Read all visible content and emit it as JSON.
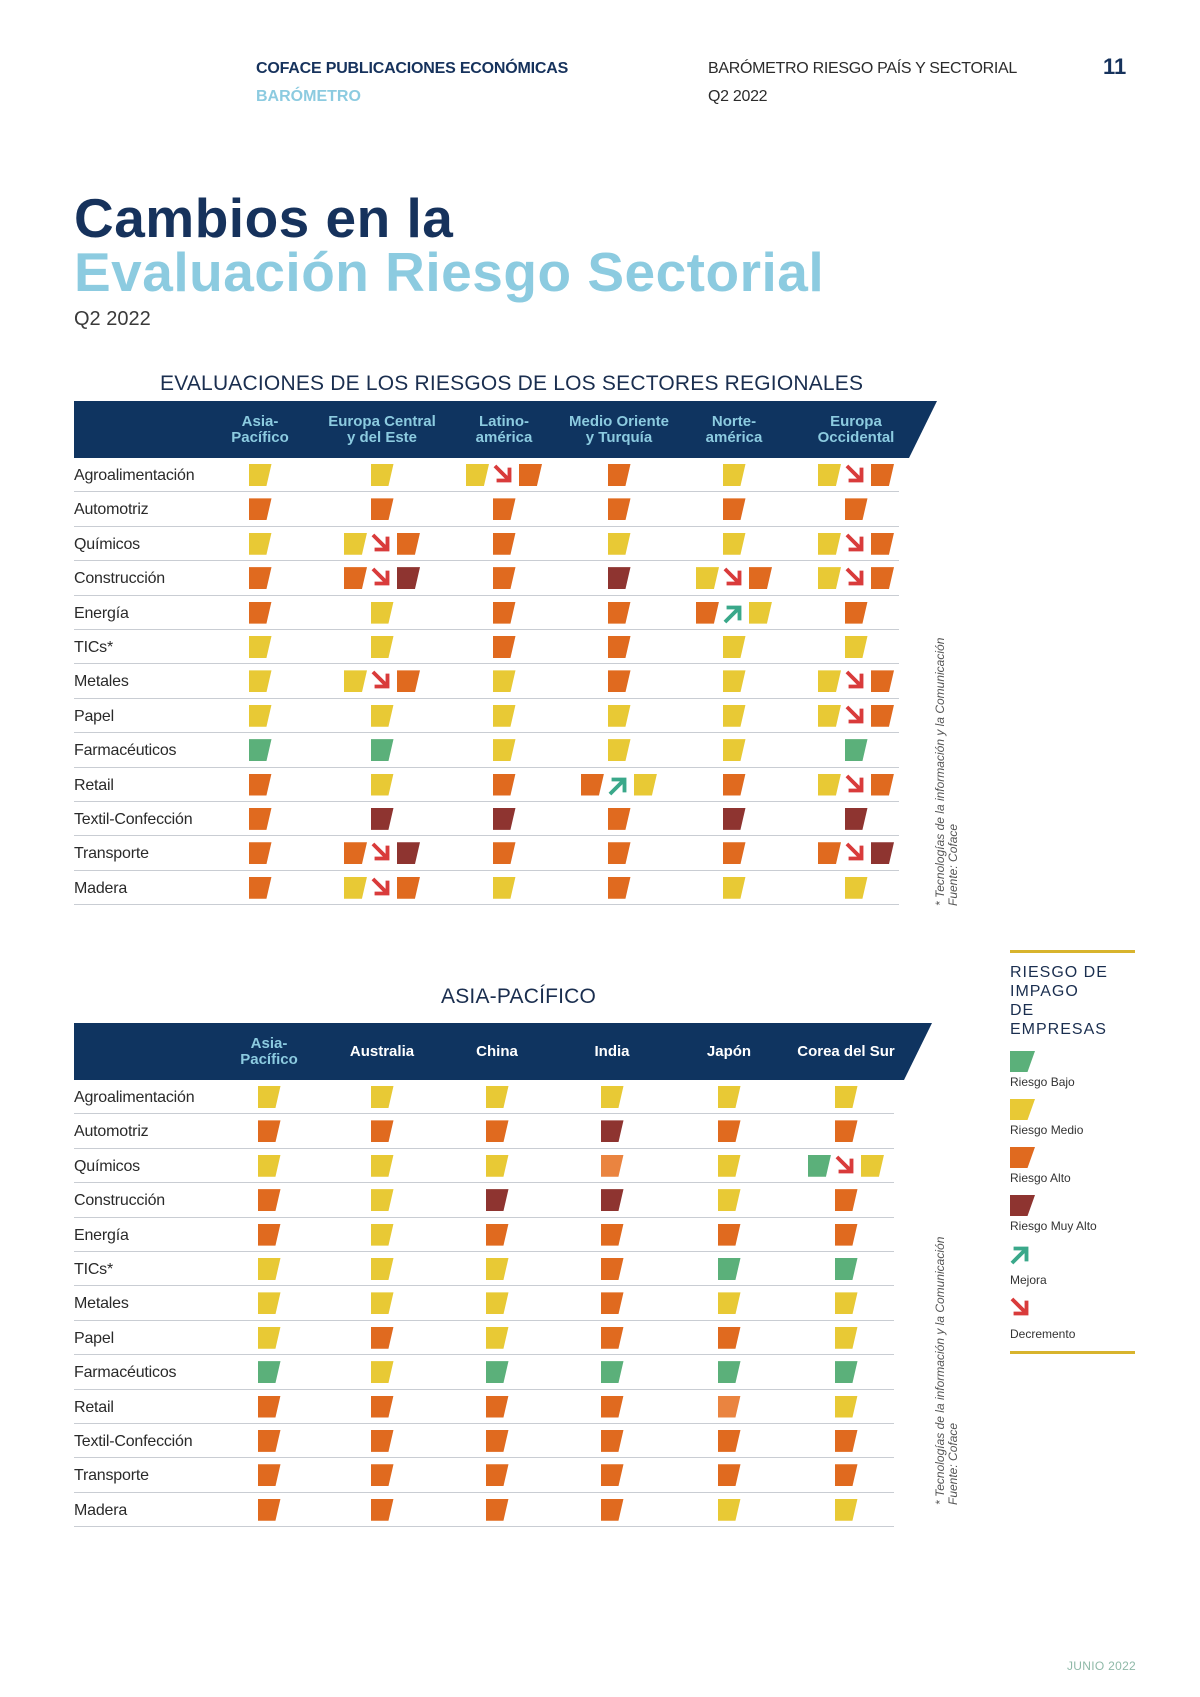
{
  "header": {
    "publisher": "COFACE PUBLICACIONES ECONÓMICAS",
    "series": "BARÓMETRO",
    "report": "BARÓMETRO RIESGO PAÍS Y SECTORIAL",
    "period": "Q2 2022",
    "page_number": "11"
  },
  "title": {
    "line1": "Cambios en la",
    "line2": "Evaluación Riesgo Sectorial",
    "subtitle": "Q2 2022"
  },
  "colors": {
    "bajo": "#5bb07a",
    "medio": "#e8c935",
    "alto": "#e06a1f",
    "alto_light": "#ea8440",
    "muy_alto": "#8e3430",
    "mejora": "#3aa88a",
    "decremento": "#d93b3b",
    "header_bg": "#0f3460",
    "accent_light_blue": "#8ccbe0"
  },
  "table1": {
    "title": "EVALUACIONES DE LOS RIESGOS DE LOS SECTORES REGIONALES",
    "columns": [
      {
        "label": "Asia-\nPacífico",
        "highlight": true
      },
      {
        "label": "Europa Central\ny del Este",
        "highlight": true
      },
      {
        "label": "Latino-\namérica",
        "highlight": true
      },
      {
        "label": "Medio Oriente\ny Turquía",
        "highlight": true
      },
      {
        "label": "Norte-\namérica",
        "highlight": true
      },
      {
        "label": "Europa\nOccidental",
        "highlight": true
      }
    ],
    "rows": [
      {
        "sector": "Agroalimentación",
        "cells": [
          [
            "medio"
          ],
          [
            "medio"
          ],
          [
            "medio",
            "down",
            "alto"
          ],
          [
            "alto"
          ],
          [
            "medio"
          ],
          [
            "medio",
            "down",
            "alto"
          ]
        ]
      },
      {
        "sector": "Automotriz",
        "cells": [
          [
            "alto"
          ],
          [
            "alto"
          ],
          [
            "alto"
          ],
          [
            "alto"
          ],
          [
            "alto"
          ],
          [
            "alto"
          ]
        ]
      },
      {
        "sector": "Químicos",
        "cells": [
          [
            "medio"
          ],
          [
            "medio",
            "down",
            "alto"
          ],
          [
            "alto"
          ],
          [
            "medio"
          ],
          [
            "medio"
          ],
          [
            "medio",
            "down",
            "alto"
          ]
        ]
      },
      {
        "sector": "Construcción",
        "cells": [
          [
            "alto"
          ],
          [
            "alto",
            "down",
            "muy_alto"
          ],
          [
            "alto"
          ],
          [
            "muy_alto"
          ],
          [
            "medio",
            "down",
            "alto"
          ],
          [
            "medio",
            "down",
            "alto"
          ]
        ]
      },
      {
        "sector": "Energía",
        "cells": [
          [
            "alto"
          ],
          [
            "medio"
          ],
          [
            "alto"
          ],
          [
            "alto"
          ],
          [
            "alto",
            "up",
            "medio"
          ],
          [
            "alto"
          ]
        ]
      },
      {
        "sector": "TICs*",
        "cells": [
          [
            "medio"
          ],
          [
            "medio"
          ],
          [
            "alto"
          ],
          [
            "alto"
          ],
          [
            "medio"
          ],
          [
            "medio"
          ]
        ]
      },
      {
        "sector": "Metales",
        "cells": [
          [
            "medio"
          ],
          [
            "medio",
            "down",
            "alto"
          ],
          [
            "medio"
          ],
          [
            "alto"
          ],
          [
            "medio"
          ],
          [
            "medio",
            "down",
            "alto"
          ]
        ]
      },
      {
        "sector": "Papel",
        "cells": [
          [
            "medio"
          ],
          [
            "medio"
          ],
          [
            "medio"
          ],
          [
            "medio"
          ],
          [
            "medio"
          ],
          [
            "medio",
            "down",
            "alto"
          ]
        ]
      },
      {
        "sector": "Farmacéuticos",
        "cells": [
          [
            "bajo"
          ],
          [
            "bajo"
          ],
          [
            "medio"
          ],
          [
            "medio"
          ],
          [
            "medio"
          ],
          [
            "bajo"
          ]
        ]
      },
      {
        "sector": "Retail",
        "cells": [
          [
            "alto"
          ],
          [
            "medio"
          ],
          [
            "alto"
          ],
          [
            "alto",
            "up",
            "medio"
          ],
          [
            "alto"
          ],
          [
            "medio",
            "down",
            "alto"
          ]
        ]
      },
      {
        "sector": "Textil-Confección",
        "cells": [
          [
            "alto"
          ],
          [
            "muy_alto"
          ],
          [
            "muy_alto"
          ],
          [
            "alto"
          ],
          [
            "muy_alto"
          ],
          [
            "muy_alto"
          ]
        ]
      },
      {
        "sector": "Transporte",
        "cells": [
          [
            "alto"
          ],
          [
            "alto",
            "down",
            "muy_alto"
          ],
          [
            "alto"
          ],
          [
            "alto"
          ],
          [
            "alto"
          ],
          [
            "alto",
            "down",
            "muy_alto"
          ]
        ]
      },
      {
        "sector": "Madera",
        "cells": [
          [
            "alto"
          ],
          [
            "medio",
            "down",
            "alto"
          ],
          [
            "medio"
          ],
          [
            "alto"
          ],
          [
            "medio"
          ],
          [
            "medio"
          ]
        ]
      }
    ],
    "footnote": "* Tecnologías de la información y la Comunicación",
    "source": "Fuente: Coface"
  },
  "table2": {
    "title": "ASIA-PACÍFICO",
    "columns": [
      {
        "label": "Asia-\nPacífico",
        "highlight": true
      },
      {
        "label": "Australia",
        "highlight": false
      },
      {
        "label": "China",
        "highlight": false
      },
      {
        "label": "India",
        "highlight": false
      },
      {
        "label": "Japón",
        "highlight": false
      },
      {
        "label": "Corea del Sur",
        "highlight": false
      }
    ],
    "rows": [
      {
        "sector": "Agroalimentación",
        "cells": [
          [
            "medio"
          ],
          [
            "medio"
          ],
          [
            "medio"
          ],
          [
            "medio"
          ],
          [
            "medio"
          ],
          [
            "medio"
          ]
        ]
      },
      {
        "sector": "Automotriz",
        "cells": [
          [
            "alto"
          ],
          [
            "alto"
          ],
          [
            "alto"
          ],
          [
            "muy_alto"
          ],
          [
            "alto"
          ],
          [
            "alto"
          ]
        ]
      },
      {
        "sector": "Químicos",
        "cells": [
          [
            "medio"
          ],
          [
            "medio"
          ],
          [
            "medio"
          ],
          [
            "alto_light"
          ],
          [
            "medio"
          ],
          [
            "bajo",
            "down",
            "medio"
          ]
        ]
      },
      {
        "sector": "Construcción",
        "cells": [
          [
            "alto"
          ],
          [
            "medio"
          ],
          [
            "muy_alto"
          ],
          [
            "muy_alto"
          ],
          [
            "medio"
          ],
          [
            "alto"
          ]
        ]
      },
      {
        "sector": "Energía",
        "cells": [
          [
            "alto"
          ],
          [
            "medio"
          ],
          [
            "alto"
          ],
          [
            "alto"
          ],
          [
            "alto"
          ],
          [
            "alto"
          ]
        ]
      },
      {
        "sector": "TICs*",
        "cells": [
          [
            "medio"
          ],
          [
            "medio"
          ],
          [
            "medio"
          ],
          [
            "alto"
          ],
          [
            "bajo"
          ],
          [
            "bajo"
          ]
        ]
      },
      {
        "sector": "Metales",
        "cells": [
          [
            "medio"
          ],
          [
            "medio"
          ],
          [
            "medio"
          ],
          [
            "alto"
          ],
          [
            "medio"
          ],
          [
            "medio"
          ]
        ]
      },
      {
        "sector": "Papel",
        "cells": [
          [
            "medio"
          ],
          [
            "alto"
          ],
          [
            "medio"
          ],
          [
            "alto"
          ],
          [
            "alto"
          ],
          [
            "medio"
          ]
        ]
      },
      {
        "sector": "Farmacéuticos",
        "cells": [
          [
            "bajo"
          ],
          [
            "medio"
          ],
          [
            "bajo"
          ],
          [
            "bajo"
          ],
          [
            "bajo"
          ],
          [
            "bajo"
          ]
        ]
      },
      {
        "sector": "Retail",
        "cells": [
          [
            "alto"
          ],
          [
            "alto"
          ],
          [
            "alto"
          ],
          [
            "alto"
          ],
          [
            "alto_light"
          ],
          [
            "medio"
          ]
        ]
      },
      {
        "sector": "Textil-Confección",
        "cells": [
          [
            "alto"
          ],
          [
            "alto"
          ],
          [
            "alto"
          ],
          [
            "alto"
          ],
          [
            "alto"
          ],
          [
            "alto"
          ]
        ]
      },
      {
        "sector": "Transporte",
        "cells": [
          [
            "alto"
          ],
          [
            "alto"
          ],
          [
            "alto"
          ],
          [
            "alto"
          ],
          [
            "alto"
          ],
          [
            "alto"
          ]
        ]
      },
      {
        "sector": "Madera",
        "cells": [
          [
            "alto"
          ],
          [
            "alto"
          ],
          [
            "alto"
          ],
          [
            "alto"
          ],
          [
            "medio"
          ],
          [
            "medio"
          ]
        ]
      }
    ],
    "footnote": "* Tecnologías de la información y la Comunicación",
    "source": "Fuente: Coface"
  },
  "legend": {
    "title": "RIESGO DE\nIMPAGO\nDE EMPRESAS",
    "items": [
      {
        "key": "bajo",
        "label": "Riesgo Bajo",
        "type": "square"
      },
      {
        "key": "medio",
        "label": "Riesgo Medio",
        "type": "square"
      },
      {
        "key": "alto",
        "label": "Riesgo Alto",
        "type": "square"
      },
      {
        "key": "muy_alto",
        "label": "Riesgo Muy Alto",
        "type": "square"
      },
      {
        "key": "up",
        "label": "Mejora",
        "type": "arrow-up"
      },
      {
        "key": "down",
        "label": "Decremento",
        "type": "arrow-down"
      }
    ]
  },
  "footer": {
    "date": "JUNIO 2022"
  }
}
